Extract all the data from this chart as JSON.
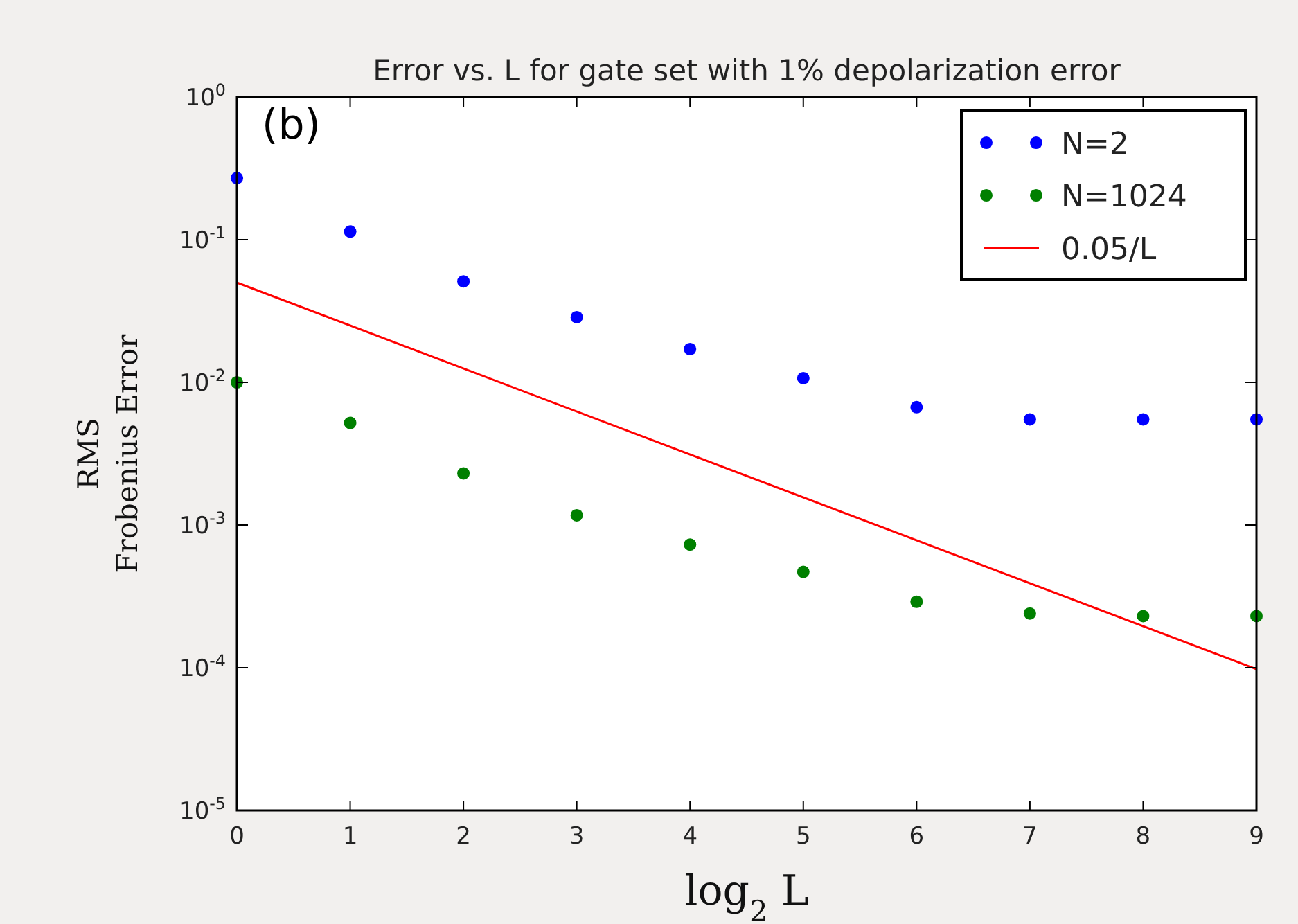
{
  "chart_data": {
    "type": "scatter",
    "title": "Error vs. L for gate set with 1% depolarization error",
    "xlabel": "log$_{2}$ L",
    "ylabel": "RMS\nFrobenius Error",
    "annotations": [
      "(b)"
    ],
    "series": [
      {
        "name": "N=2",
        "color": "#0000ff",
        "marker": "circle",
        "x": [
          0,
          1,
          2,
          3,
          4,
          5,
          6,
          7,
          8,
          9
        ],
        "values": [
          0.27,
          0.114,
          0.051,
          0.0286,
          0.0171,
          0.0107,
          0.0067,
          0.0055,
          0.0055,
          0.0055
        ]
      },
      {
        "name": "N=1024",
        "color": "#008000",
        "marker": "circle",
        "x": [
          0,
          1,
          2,
          3,
          4,
          5,
          6,
          7,
          8,
          9
        ],
        "values": [
          0.01,
          0.0052,
          0.0023,
          0.00117,
          0.00073,
          0.00047,
          0.00029,
          0.00024,
          0.00023,
          0.00023
        ]
      },
      {
        "name": "0.05/L",
        "type": "line",
        "color": "#ff0000",
        "x": [
          0,
          9
        ],
        "values": [
          0.05,
          9.77e-05
        ]
      }
    ],
    "xlim": [
      0,
      9
    ],
    "xticks": [
      0,
      1,
      2,
      3,
      4,
      5,
      6,
      7,
      8,
      9
    ],
    "ylim": [
      1e-05,
      1
    ],
    "yticks": [
      {
        "value": 1,
        "label": "10$^{0}$"
      },
      {
        "value": 0.1,
        "label": "10$^{-1}$"
      },
      {
        "value": 0.01,
        "label": "10$^{-2}$"
      },
      {
        "value": 0.001,
        "label": "10$^{-3}$"
      },
      {
        "value": 0.0001,
        "label": "10$^{-4}$"
      },
      {
        "value": 1e-05,
        "label": "10$^{-5}$"
      }
    ],
    "log": "y",
    "grid": false,
    "legend": "top right"
  }
}
